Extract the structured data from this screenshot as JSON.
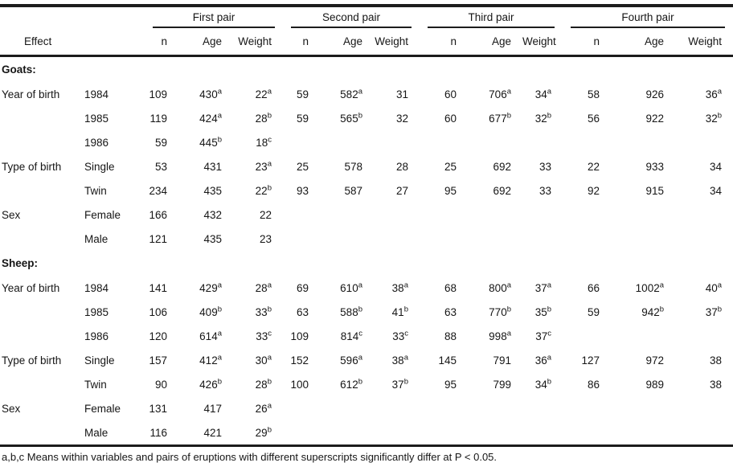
{
  "colors": {
    "text": "#161616",
    "rule": "#1c1c1c",
    "background": "#ffffff"
  },
  "page": {
    "footnote": "a,b,c Means within variables and pairs of eruptions with different superscripts significantly differ at P < 0.05."
  },
  "table": {
    "effect_header": "Effect",
    "pair_groups": [
      "First pair",
      "Second pair",
      "Third pair",
      "Fourth pair"
    ],
    "sub_headers": [
      "n",
      "Age",
      "Weight"
    ],
    "sections": [
      {
        "label": "Goats:",
        "rows": [
          {
            "effect": "Year of birth",
            "level": "1984",
            "values": [
              "109",
              "430^a",
              "22^a",
              "59",
              "582^a",
              "31",
              "60",
              "706^a",
              "34^a",
              "58",
              "926",
              "36^a"
            ]
          },
          {
            "effect": "",
            "level": "1985",
            "values": [
              "119",
              "424^a",
              "28^b",
              "59",
              "565^b",
              "32",
              "60",
              "677^b",
              "32^b",
              "56",
              "922",
              "32^b"
            ]
          },
          {
            "effect": "",
            "level": "1986",
            "values": [
              "59",
              "445^b",
              "18^c",
              "",
              "",
              "",
              "",
              "",
              "",
              "",
              "",
              ""
            ]
          },
          {
            "effect": "Type of birth",
            "level": "Single",
            "values": [
              "53",
              "431",
              "23^a",
              "25",
              "578",
              "28",
              "25",
              "692",
              "33",
              "22",
              "933",
              "34"
            ]
          },
          {
            "effect": "",
            "level": "Twin",
            "values": [
              "234",
              "435",
              "22^b",
              "93",
              "587",
              "27",
              "95",
              "692",
              "33",
              "92",
              "915",
              "34"
            ]
          },
          {
            "effect": "Sex",
            "level": "Female",
            "values": [
              "166",
              "432",
              "22",
              "",
              "",
              "",
              "",
              "",
              "",
              "",
              "",
              ""
            ]
          },
          {
            "effect": "",
            "level": "Male",
            "values": [
              "121",
              "435",
              "23",
              "",
              "",
              "",
              "",
              "",
              "",
              "",
              "",
              ""
            ]
          }
        ]
      },
      {
        "label": "Sheep:",
        "rows": [
          {
            "effect": "Year of birth",
            "level": "1984",
            "values": [
              "141",
              "429^a",
              "28^a",
              "69",
              "610^a",
              "38^a",
              "68",
              "800^a",
              "37^a",
              "66",
              "1002^a",
              "40^a"
            ]
          },
          {
            "effect": "",
            "level": "1985",
            "values": [
              "106",
              "409^b",
              "33^b",
              "63",
              "588^b",
              "41^b",
              "63",
              "770^b",
              "35^b",
              "59",
              "942^b",
              "37^b"
            ]
          },
          {
            "effect": "",
            "level": "1986",
            "values": [
              "120",
              "614^a",
              "33^c",
              "109",
              "814^c",
              "33^c",
              "88",
              "998^a",
              "37^c",
              "",
              "",
              ""
            ]
          },
          {
            "effect": "Type of birth",
            "level": "Single",
            "values": [
              "157",
              "412^a",
              "30^a",
              "152",
              "596^a",
              "38^a",
              "145",
              "791",
              "36^a",
              "127",
              "972",
              "38"
            ]
          },
          {
            "effect": "",
            "level": "Twin",
            "values": [
              "90",
              "426^b",
              "28^b",
              "100",
              "612^b",
              "37^b",
              "95",
              "799",
              "34^b",
              "86",
              "989",
              "38"
            ]
          },
          {
            "effect": "Sex",
            "level": "Female",
            "values": [
              "131",
              "417",
              "26^a",
              "",
              "",
              "",
              "",
              "",
              "",
              "",
              "",
              ""
            ]
          },
          {
            "effect": "",
            "level": "Male",
            "values": [
              "116",
              "421",
              "29^b",
              "",
              "",
              "",
              "",
              "",
              "",
              "",
              "",
              ""
            ]
          }
        ]
      }
    ]
  }
}
